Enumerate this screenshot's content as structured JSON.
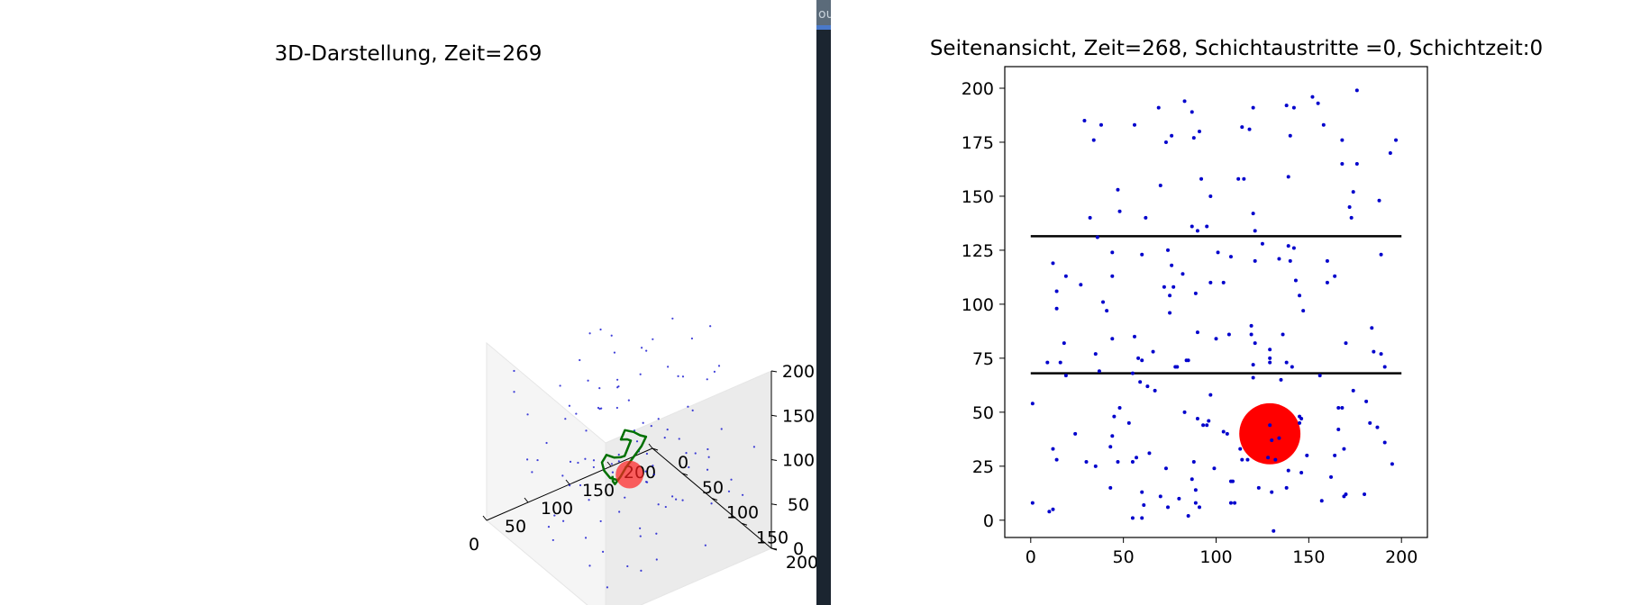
{
  "divider_tab": {
    "text": "ou"
  },
  "chart_data": [
    {
      "type": "scatter",
      "title": "3D-Darstellung, Zeit=269",
      "x_ticks": [
        "0",
        "50",
        "100",
        "150",
        "200"
      ],
      "y_ticks": [
        "0",
        "50",
        "100",
        "150",
        "200"
      ],
      "z_ticks": [
        "0",
        "50",
        "100",
        "150",
        "200"
      ],
      "xlim": [
        0,
        200
      ],
      "ylim": [
        0,
        200
      ],
      "zlim": [
        0,
        200
      ],
      "grid": false,
      "colors": {
        "points": "#0000cc",
        "trajectory": "#007000",
        "sphere": "#ff2020"
      },
      "points_xyz": [
        [
          12,
          150,
          60
        ],
        [
          24,
          140,
          18
        ],
        [
          35,
          188,
          40
        ],
        [
          42,
          92,
          155
        ],
        [
          55,
          77,
          86
        ],
        [
          63,
          182,
          120
        ],
        [
          70,
          60,
          45
        ],
        [
          85,
          130,
          140
        ],
        [
          98,
          37,
          192
        ],
        [
          110,
          165,
          72
        ],
        [
          118,
          55,
          110
        ],
        [
          130,
          120,
          30
        ],
        [
          140,
          15,
          160
        ],
        [
          150,
          95,
          95
        ],
        [
          160,
          172,
          135
        ],
        [
          170,
          40,
          60
        ],
        [
          180,
          140,
          180
        ],
        [
          190,
          75,
          25
        ],
        [
          196,
          110,
          150
        ],
        [
          6,
          60,
          100
        ],
        [
          16,
          110,
          170
        ],
        [
          28,
          30,
          125
        ],
        [
          38,
          170,
          90
        ],
        [
          48,
          125,
          50
        ],
        [
          58,
          20,
          75
        ],
        [
          68,
          95,
          175
        ],
        [
          78,
          150,
          35
        ],
        [
          88,
          70,
          130
        ],
        [
          96,
          190,
          160
        ],
        [
          106,
          110,
          10
        ],
        [
          116,
          30,
          185
        ],
        [
          126,
          160,
          115
        ],
        [
          136,
          80,
          65
        ],
        [
          146,
          135,
          145
        ],
        [
          156,
          50,
          20
        ],
        [
          166,
          180,
          80
        ],
        [
          176,
          100,
          190
        ],
        [
          186,
          20,
          140
        ],
        [
          194,
          160,
          40
        ],
        [
          4,
          190,
          70
        ],
        [
          14,
          85,
          35
        ],
        [
          26,
          10,
          140
        ],
        [
          36,
          140,
          190
        ],
        [
          46,
          50,
          15
        ],
        [
          56,
          175,
          165
        ],
        [
          66,
          120,
          95
        ],
        [
          76,
          35,
          55
        ],
        [
          86,
          100,
          180
        ],
        [
          94,
          155,
          5
        ],
        [
          104,
          75,
          150
        ],
        [
          114,
          130,
          45
        ],
        [
          124,
          15,
          85
        ],
        [
          134,
          185,
          130
        ],
        [
          144,
          60,
          170
        ],
        [
          154,
          115,
          25
        ],
        [
          164,
          30,
          115
        ],
        [
          174,
          165,
          55
        ],
        [
          184,
          90,
          100
        ],
        [
          192,
          45,
          175
        ],
        [
          2,
          125,
          120
        ],
        [
          20,
          175,
          15
        ],
        [
          32,
          95,
          80
        ],
        [
          44,
          15,
          45
        ],
        [
          52,
          150,
          130
        ],
        [
          62,
          70,
          195
        ],
        [
          72,
          185,
          60
        ],
        [
          82,
          25,
          110
        ],
        [
          92,
          140,
          85
        ],
        [
          102,
          90,
          35
        ],
        [
          112,
          195,
          140
        ],
        [
          122,
          45,
          165
        ],
        [
          132,
          105,
          120
        ],
        [
          142,
          170,
          10
        ],
        [
          152,
          10,
          95
        ],
        [
          162,
          145,
          175
        ],
        [
          172,
          65,
          140
        ],
        [
          182,
          120,
          65
        ],
        [
          190,
          185,
          110
        ],
        [
          8,
          35,
          185
        ],
        [
          18,
          155,
          140
        ],
        [
          30,
          70,
          5
        ],
        [
          40,
          110,
          115
        ],
        [
          50,
          190,
          30
        ],
        [
          60,
          40,
          150
        ],
        [
          74,
          160,
          170
        ],
        [
          84,
          55,
          20
        ],
        [
          94,
          125,
          110
        ],
        [
          108,
          20,
          125
        ],
        [
          120,
          145,
          60
        ],
        [
          128,
          90,
          190
        ],
        [
          138,
          30,
          35
        ],
        [
          148,
          165,
          90
        ],
        [
          158,
          110,
          160
        ],
        [
          168,
          5,
          70
        ],
        [
          178,
          130,
          20
        ],
        [
          188,
          60,
          120
        ],
        [
          198,
          100,
          195
        ],
        [
          10,
          115,
          60
        ],
        [
          22,
          55,
          90
        ],
        [
          34,
          120,
          155
        ],
        [
          54,
          105,
          105
        ],
        [
          80,
          170,
          115
        ],
        [
          100,
          140,
          100
        ],
        [
          136,
          110,
          100
        ],
        [
          90,
          85,
          75
        ]
      ],
      "trajectory_xyz": [
        [
          100,
          80,
          50
        ],
        [
          88,
          85,
          60
        ],
        [
          80,
          86,
          72
        ],
        [
          76,
          88,
          84
        ],
        [
          80,
          90,
          92
        ],
        [
          92,
          86,
          82
        ],
        [
          104,
          80,
          74
        ],
        [
          112,
          76,
          70
        ],
        [
          118,
          78,
          86
        ],
        [
          108,
          86,
          96
        ],
        [
          96,
          92,
          104
        ],
        [
          98,
          96,
          116
        ],
        [
          110,
          94,
          108
        ],
        [
          122,
          88,
          96
        ],
        [
          132,
          84,
          88
        ],
        [
          128,
          82,
          78
        ],
        [
          120,
          80,
          68
        ],
        [
          112,
          78,
          58
        ],
        [
          104,
          80,
          52
        ],
        [
          96,
          82,
          48
        ],
        [
          92,
          84,
          54
        ],
        [
          90,
          86,
          62
        ]
      ],
      "sphere": {
        "x": 115,
        "y": 80,
        "z": 50,
        "r": 14
      }
    },
    {
      "type": "scatter",
      "title": "Seitenansicht, Zeit=268, Schichtaustritte =0, Schichtzeit:0",
      "x_ticks": [
        "0",
        "50",
        "100",
        "150",
        "200"
      ],
      "y_ticks": [
        "0",
        "25",
        "50",
        "75",
        "100",
        "125",
        "150",
        "175",
        "200"
      ],
      "xlim": [
        -14,
        214
      ],
      "ylim": [
        -8,
        210
      ],
      "grid": false,
      "colors": {
        "points": "#0000cc",
        "lines": "#000000",
        "circle": "#ff0000"
      },
      "horizontal_lines": [
        {
          "y": 131.5,
          "x_from": 0,
          "x_to": 200
        },
        {
          "y": 68,
          "x_from": 0,
          "x_to": 200
        }
      ],
      "circle": {
        "x": 129,
        "y": 40,
        "r": 16.5
      },
      "points": [
        [
          1,
          54
        ],
        [
          1,
          8
        ],
        [
          10,
          4
        ],
        [
          12,
          5
        ],
        [
          12,
          33
        ],
        [
          14,
          28
        ],
        [
          9,
          73
        ],
        [
          12,
          119
        ],
        [
          14,
          106
        ],
        [
          14,
          98
        ],
        [
          16,
          73
        ],
        [
          18,
          82
        ],
        [
          19,
          67
        ],
        [
          19,
          113
        ],
        [
          24,
          40
        ],
        [
          27,
          109
        ],
        [
          29,
          185
        ],
        [
          30,
          27
        ],
        [
          32,
          140
        ],
        [
          34,
          176
        ],
        [
          35,
          25
        ],
        [
          35,
          77
        ],
        [
          36,
          131
        ],
        [
          37,
          69
        ],
        [
          38,
          183
        ],
        [
          39,
          101
        ],
        [
          41,
          97
        ],
        [
          43,
          15
        ],
        [
          43,
          34
        ],
        [
          44,
          39
        ],
        [
          44,
          124
        ],
        [
          44,
          113
        ],
        [
          44,
          84
        ],
        [
          45,
          48
        ],
        [
          47,
          153
        ],
        [
          47,
          27
        ],
        [
          48,
          52
        ],
        [
          48,
          143
        ],
        [
          53,
          45
        ],
        [
          55,
          1
        ],
        [
          55,
          27
        ],
        [
          55,
          68
        ],
        [
          56,
          183
        ],
        [
          56,
          85
        ],
        [
          57,
          29
        ],
        [
          58,
          75
        ],
        [
          59,
          64
        ],
        [
          60,
          74
        ],
        [
          60,
          123
        ],
        [
          60,
          1
        ],
        [
          60,
          13
        ],
        [
          61,
          7
        ],
        [
          62,
          140
        ],
        [
          63,
          62
        ],
        [
          64,
          31
        ],
        [
          66,
          78
        ],
        [
          67,
          60
        ],
        [
          69,
          191
        ],
        [
          70,
          155
        ],
        [
          70,
          11
        ],
        [
          72,
          108
        ],
        [
          73,
          175
        ],
        [
          73,
          24
        ],
        [
          74,
          6
        ],
        [
          74,
          125
        ],
        [
          75,
          104
        ],
        [
          75,
          96
        ],
        [
          76,
          178
        ],
        [
          76,
          118
        ],
        [
          77,
          108
        ],
        [
          78,
          71
        ],
        [
          79,
          71
        ],
        [
          80,
          10
        ],
        [
          82,
          114
        ],
        [
          83,
          194
        ],
        [
          83,
          50
        ],
        [
          84,
          74
        ],
        [
          85,
          2
        ],
        [
          85,
          74
        ],
        [
          87,
          189
        ],
        [
          87,
          136
        ],
        [
          87,
          19
        ],
        [
          88,
          177
        ],
        [
          88,
          27
        ],
        [
          89,
          14
        ],
        [
          89,
          105
        ],
        [
          89,
          8
        ],
        [
          90,
          134
        ],
        [
          90,
          87
        ],
        [
          90,
          47
        ],
        [
          91,
          180
        ],
        [
          91,
          6
        ],
        [
          92,
          158
        ],
        [
          93,
          44
        ],
        [
          95,
          44
        ],
        [
          95,
          136
        ],
        [
          96,
          46
        ],
        [
          97,
          150
        ],
        [
          97,
          58
        ],
        [
          97,
          110
        ],
        [
          99,
          24
        ],
        [
          100,
          84
        ],
        [
          101,
          124
        ],
        [
          104,
          110
        ],
        [
          104,
          41
        ],
        [
          106,
          40
        ],
        [
          107,
          86
        ],
        [
          108,
          18
        ],
        [
          108,
          122
        ],
        [
          108,
          8
        ],
        [
          109,
          18
        ],
        [
          110,
          8
        ],
        [
          112,
          158
        ],
        [
          113,
          33
        ],
        [
          114,
          182
        ],
        [
          114,
          28
        ],
        [
          115,
          158
        ],
        [
          117,
          28
        ],
        [
          118,
          181
        ],
        [
          119,
          86
        ],
        [
          119,
          90
        ],
        [
          120,
          66
        ],
        [
          120,
          72
        ],
        [
          120,
          191
        ],
        [
          120,
          142
        ],
        [
          121,
          134
        ],
        [
          121,
          82
        ],
        [
          121,
          120
        ],
        [
          123,
          15
        ],
        [
          125,
          128
        ],
        [
          128,
          29
        ],
        [
          129,
          75
        ],
        [
          129,
          79
        ],
        [
          129,
          73
        ],
        [
          129,
          44
        ],
        [
          130,
          13
        ],
        [
          130,
          37
        ],
        [
          131,
          -5
        ],
        [
          132,
          28
        ],
        [
          134,
          121
        ],
        [
          134,
          38
        ],
        [
          135,
          65
        ],
        [
          136,
          86
        ],
        [
          138,
          192
        ],
        [
          138,
          73
        ],
        [
          138,
          15
        ],
        [
          139,
          159
        ],
        [
          139,
          127
        ],
        [
          139,
          23
        ],
        [
          140,
          178
        ],
        [
          140,
          120
        ],
        [
          141,
          71
        ],
        [
          142,
          126
        ],
        [
          142,
          191
        ],
        [
          143,
          111
        ],
        [
          145,
          48
        ],
        [
          145,
          45
        ],
        [
          145,
          104
        ],
        [
          146,
          22
        ],
        [
          146,
          47
        ],
        [
          147,
          97
        ],
        [
          149,
          30
        ],
        [
          152,
          196
        ],
        [
          155,
          193
        ],
        [
          156,
          67
        ],
        [
          157,
          9
        ],
        [
          158,
          183
        ],
        [
          160,
          120
        ],
        [
          160,
          110
        ],
        [
          162,
          20
        ],
        [
          164,
          30
        ],
        [
          164,
          113
        ],
        [
          166,
          52
        ],
        [
          166,
          42
        ],
        [
          168,
          176
        ],
        [
          168,
          165
        ],
        [
          168,
          52
        ],
        [
          169,
          33
        ],
        [
          169,
          11
        ],
        [
          170,
          12
        ],
        [
          170,
          82
        ],
        [
          172,
          145
        ],
        [
          173,
          140
        ],
        [
          174,
          152
        ],
        [
          174,
          60
        ],
        [
          176,
          165
        ],
        [
          176,
          199
        ],
        [
          180,
          12
        ],
        [
          181,
          55
        ],
        [
          183,
          45
        ],
        [
          184,
          89
        ],
        [
          185,
          78
        ],
        [
          187,
          43
        ],
        [
          188,
          148
        ],
        [
          189,
          123
        ],
        [
          189,
          77
        ],
        [
          191,
          36
        ],
        [
          191,
          71
        ],
        [
          194,
          170
        ],
        [
          195,
          26
        ],
        [
          197,
          176
        ]
      ]
    }
  ]
}
